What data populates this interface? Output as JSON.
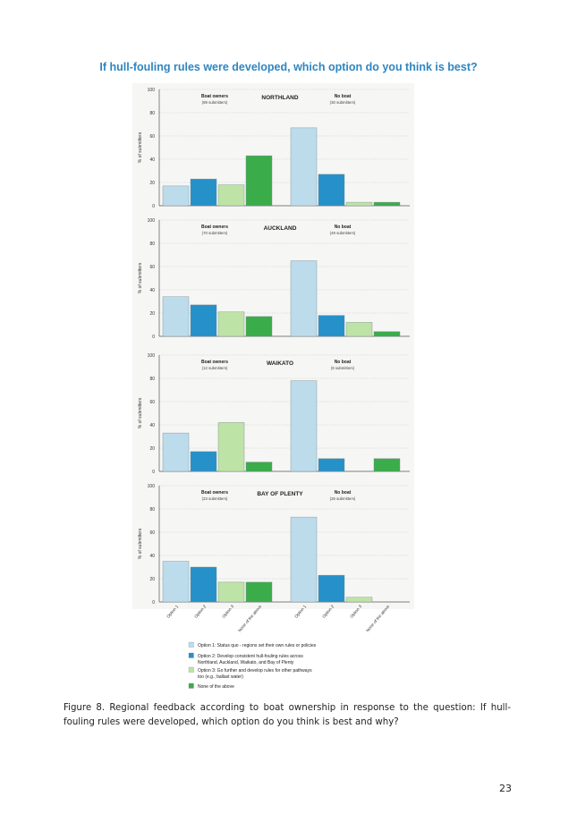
{
  "page": {
    "title": "If hull-fouling rules were developed, which option do you think is best?",
    "caption_label": "Figure 8.",
    "caption_text": " Regional feedback according to boat ownership in response to the question: If hull-fouling rules were developed, which option do you think is best and why?",
    "page_number": "23"
  },
  "chart_data": {
    "type": "bar",
    "ylabel": "% of submitters",
    "ylim": [
      0,
      100
    ],
    "yticks": [
      0,
      20,
      40,
      60,
      80,
      100
    ],
    "grid": true,
    "categories": [
      "Option 1",
      "Option 2",
      "Option 3",
      "None of the above"
    ],
    "colors": [
      "#bcdcec",
      "#2691c9",
      "#bee3a6",
      "#3bac4a"
    ],
    "legend": [
      "Option 1: Status quo - regions set their own rules or policies",
      "Option 2: Develop consistent hull-fouling rules across Northland, Auckland, Waikato, and Bay of Plenty",
      "Option 3: Go further and develop rules for other pathways too (e.g., ballast water)",
      "None of the above"
    ],
    "panels": [
      {
        "region": "NORTHLAND",
        "groups": [
          {
            "label": "Boat owners",
            "sublabel": "(89 submitters)",
            "values": [
              17,
              23,
              18,
              43
            ]
          },
          {
            "label": "No boat",
            "sublabel": "(30 submitters)",
            "values": [
              67,
              27,
              3,
              3
            ]
          }
        ]
      },
      {
        "region": "AUCKLAND",
        "groups": [
          {
            "label": "Boat owners",
            "sublabel": "(70 submitters)",
            "values": [
              34,
              27,
              21,
              17
            ]
          },
          {
            "label": "No boat",
            "sublabel": "(49 submitters)",
            "values": [
              65,
              18,
              12,
              4
            ]
          }
        ]
      },
      {
        "region": "WAIKATO",
        "groups": [
          {
            "label": "Boat owners",
            "sublabel": "(12 submitters)",
            "values": [
              33,
              17,
              42,
              8
            ]
          },
          {
            "label": "No boat",
            "sublabel": "(9 submitters)",
            "values": [
              78,
              11,
              0,
              11
            ]
          }
        ]
      },
      {
        "region": "BAY OF PLENTY",
        "groups": [
          {
            "label": "Boat owners",
            "sublabel": "(23 submitters)",
            "values": [
              35,
              30,
              17,
              17
            ]
          },
          {
            "label": "No boat",
            "sublabel": "(26 submitters)",
            "values": [
              73,
              23,
              4,
              0
            ]
          }
        ]
      }
    ]
  }
}
